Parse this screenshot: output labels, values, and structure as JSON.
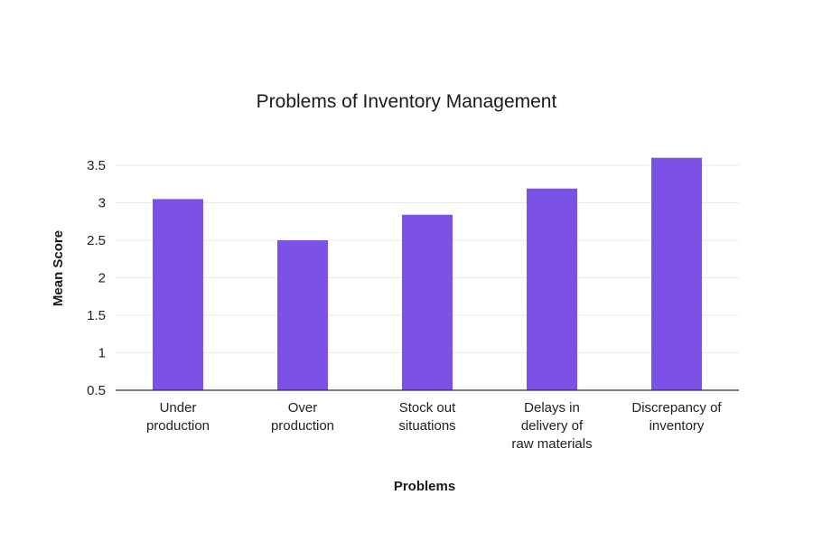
{
  "chart_data": {
    "type": "bar",
    "title": "Problems of Inventory Management",
    "xlabel": "Problems",
    "ylabel": "Mean Score",
    "categories": [
      [
        "Under",
        "production"
      ],
      [
        "Over",
        "production"
      ],
      [
        "Stock out",
        "situations"
      ],
      [
        "Delays in",
        "delivery of",
        "raw materials"
      ],
      [
        "Discrepancy of",
        "inventory"
      ]
    ],
    "values": [
      3.05,
      2.5,
      2.84,
      3.19,
      3.6
    ],
    "yticks": [
      "0.5",
      "1",
      "1.5",
      "2",
      "2.5",
      "3",
      "3.5"
    ],
    "ylim": [
      0.5,
      3.8
    ],
    "grid": true,
    "colors": {
      "bar": "#7B51E6",
      "grid": "#e9e9ee",
      "axis": "#333333"
    }
  }
}
